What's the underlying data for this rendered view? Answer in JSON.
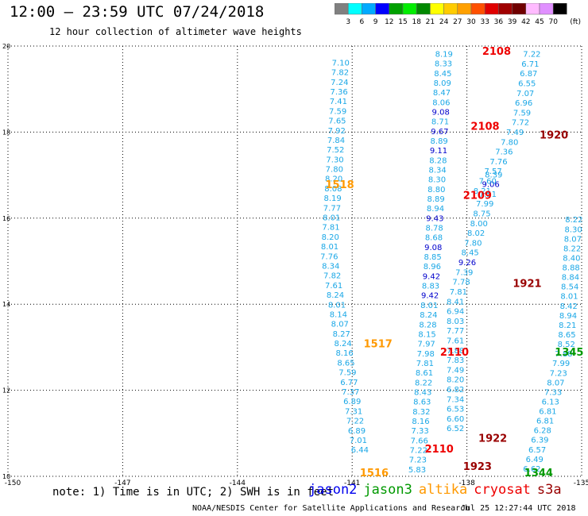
{
  "header": {
    "title": "12:00 – 23:59 UTC 07/24/2018",
    "subtitle": "12 hour collection of altimeter wave heights"
  },
  "scale": {
    "unit": "(ft)",
    "labels": [
      "3",
      "6",
      "9",
      "12",
      "15",
      "18",
      "21",
      "24",
      "27",
      "30",
      "33",
      "36",
      "39",
      "42",
      "45",
      "70"
    ],
    "colors": [
      "#808080",
      "#00ffff",
      "#00aaff",
      "#0000ff",
      "#00a000",
      "#00ee00",
      "#008800",
      "#ffff00",
      "#ffcc00",
      "#ffa000",
      "#ff5000",
      "#e00000",
      "#a00000",
      "#700000",
      "#ffbbff",
      "#e090ff",
      "#000000"
    ]
  },
  "footer": {
    "note": "note: 1) Time is in UTC; 2) SWH is in feet",
    "credit": "NOAA/NESDIS Center for Satellite Applications and Research",
    "timestamp": "Jul 25 12:27:44 UTC 2018",
    "missions": [
      {
        "name": "jason2",
        "color": "#0000ee"
      },
      {
        "name": "jason3",
        "color": "#009900"
      },
      {
        "name": "altika",
        "color": "#ff9900"
      },
      {
        "name": "cryosat",
        "color": "#ee0000"
      },
      {
        "name": "s3a",
        "color": "#990000"
      }
    ]
  },
  "chart_data": {
    "type": "scatter",
    "xlim": [
      -150,
      -135
    ],
    "ylim": [
      10,
      20
    ],
    "x_ticks": [
      "-150",
      "-147",
      "-144",
      "-141",
      "-138",
      "-135"
    ],
    "y_ticks": [
      "10",
      "12",
      "14",
      "16",
      "18",
      "20"
    ],
    "grid": true,
    "tracks": [
      {
        "x0": -141.3,
        "x1": -141.6,
        "x2": -140.8,
        "y0": 19.55,
        "dy": -0.225,
        "values": [
          "7.10",
          "7.82",
          "7.24",
          "7.36",
          "7.41",
          "7.59",
          "7.65",
          "7.92",
          "7.84",
          "7.52",
          "7.30",
          "7.80",
          "8.20",
          "8.08",
          "8.19",
          "7.77",
          "8.01",
          "7.81",
          "8.20",
          "8.01",
          "7.76",
          "8.34",
          "7.82",
          "7.61",
          "8.24",
          "8.01",
          "8.14",
          "8.07",
          "8.27",
          "8.24",
          "8.16",
          "8.65",
          "7.59",
          "6.77",
          "7.37",
          "6.89",
          "7.31",
          "7.22",
          "6.89",
          "7.01",
          "6.44"
        ]
      },
      {
        "x0": -138.6,
        "x1": -138.9,
        "x2": -139.3,
        "y0": 19.75,
        "dy": -0.2245,
        "values": [
          "8.19",
          "8.33",
          "8.45",
          "8.09",
          "8.47",
          "8.06",
          "9.08",
          "8.71",
          "9.67",
          "8.89",
          "9.11",
          "8.28",
          "8.34",
          "8.30",
          "8.80",
          "8.89",
          "8.94",
          "9.43",
          "8.78",
          "8.68",
          "9.08",
          "8.85",
          "8.96",
          "9.42",
          "8.83",
          "9.42",
          "8.01",
          "8.24",
          "8.28",
          "8.15",
          "7.97",
          "7.98",
          "7.81",
          "8.61",
          "8.22",
          "8.43",
          "8.63",
          "8.32",
          "8.16",
          "7.33",
          "7.66",
          "7.22",
          "7.23",
          "5.83"
        ]
      },
      {
        "x0": -137.3,
        "x1": -138.3,
        "x2": -138.3,
        "y0": 16.95,
        "dy": -0.227,
        "values": [
          "8.39",
          "9.06",
          "7.51",
          "7.99",
          "8.75",
          "8.00",
          "8.02",
          "7.80",
          "8.45",
          "9.26",
          "7.39",
          "7.78",
          "7.81",
          "8.41",
          "6.94",
          "8.03",
          "7.77",
          "7.61",
          "7.88",
          "7.83",
          "7.49",
          "8.20",
          "6.82",
          "7.34",
          "6.53",
          "6.60",
          "6.52"
        ]
      },
      {
        "x0": -136.3,
        "x1": -136.6,
        "x2": -137.6,
        "y0": 19.75,
        "dy": -0.227,
        "values": [
          "7.22",
          "6.71",
          "6.87",
          "6.55",
          "7.07",
          "6.96",
          "7.59",
          "7.72",
          "7.49",
          "7.80",
          "7.36",
          "7.76",
          "7.57",
          "7.60",
          "8.21"
        ]
      },
      {
        "x0": -135.2,
        "x1": -135.4,
        "x2": -136.3,
        "y0": 15.9,
        "dy": -0.2226,
        "values": [
          "8.22",
          "8.30",
          "8.07",
          "8.22",
          "8.40",
          "8.88",
          "8.84",
          "8.54",
          "8.01",
          "8.42",
          "8.94",
          "8.21",
          "8.65",
          "8.52",
          "7.88",
          "7.99",
          "7.23",
          "8.07",
          "7.33",
          "6.13",
          "6.81",
          "6.81",
          "6.28",
          "6.39",
          "6.57",
          "6.49",
          "6.62"
        ]
      }
    ],
    "times": [
      {
        "label": "2108",
        "x": -137.6,
        "y": 19.8,
        "mission": "cryosat"
      },
      {
        "label": "2108",
        "x": -137.9,
        "y": 18.05,
        "mission": "cryosat"
      },
      {
        "label": "2109",
        "x": -138.1,
        "y": 16.45,
        "mission": "cryosat"
      },
      {
        "label": "2110",
        "x": -138.7,
        "y": 12.8,
        "mission": "cryosat"
      },
      {
        "label": "2110",
        "x": -139.1,
        "y": 10.55,
        "mission": "cryosat"
      },
      {
        "label": "1920",
        "x": -136.1,
        "y": 17.85,
        "mission": "s3a"
      },
      {
        "label": "1921",
        "x": -136.8,
        "y": 14.4,
        "mission": "s3a"
      },
      {
        "label": "1922",
        "x": -137.7,
        "y": 10.8,
        "mission": "s3a"
      },
      {
        "label": "1923",
        "x": -138.1,
        "y": 10.15,
        "mission": "s3a"
      },
      {
        "label": "1518",
        "x": -141.7,
        "y": 16.7,
        "mission": "altika"
      },
      {
        "label": "1517",
        "x": -140.7,
        "y": 13.0,
        "mission": "altika"
      },
      {
        "label": "1516",
        "x": -140.8,
        "y": 10.0,
        "mission": "altika"
      },
      {
        "label": "1345",
        "x": -135.7,
        "y": 12.8,
        "mission": "jason3"
      },
      {
        "label": "1344",
        "x": -136.5,
        "y": 10.0,
        "mission": "jason3"
      }
    ]
  }
}
